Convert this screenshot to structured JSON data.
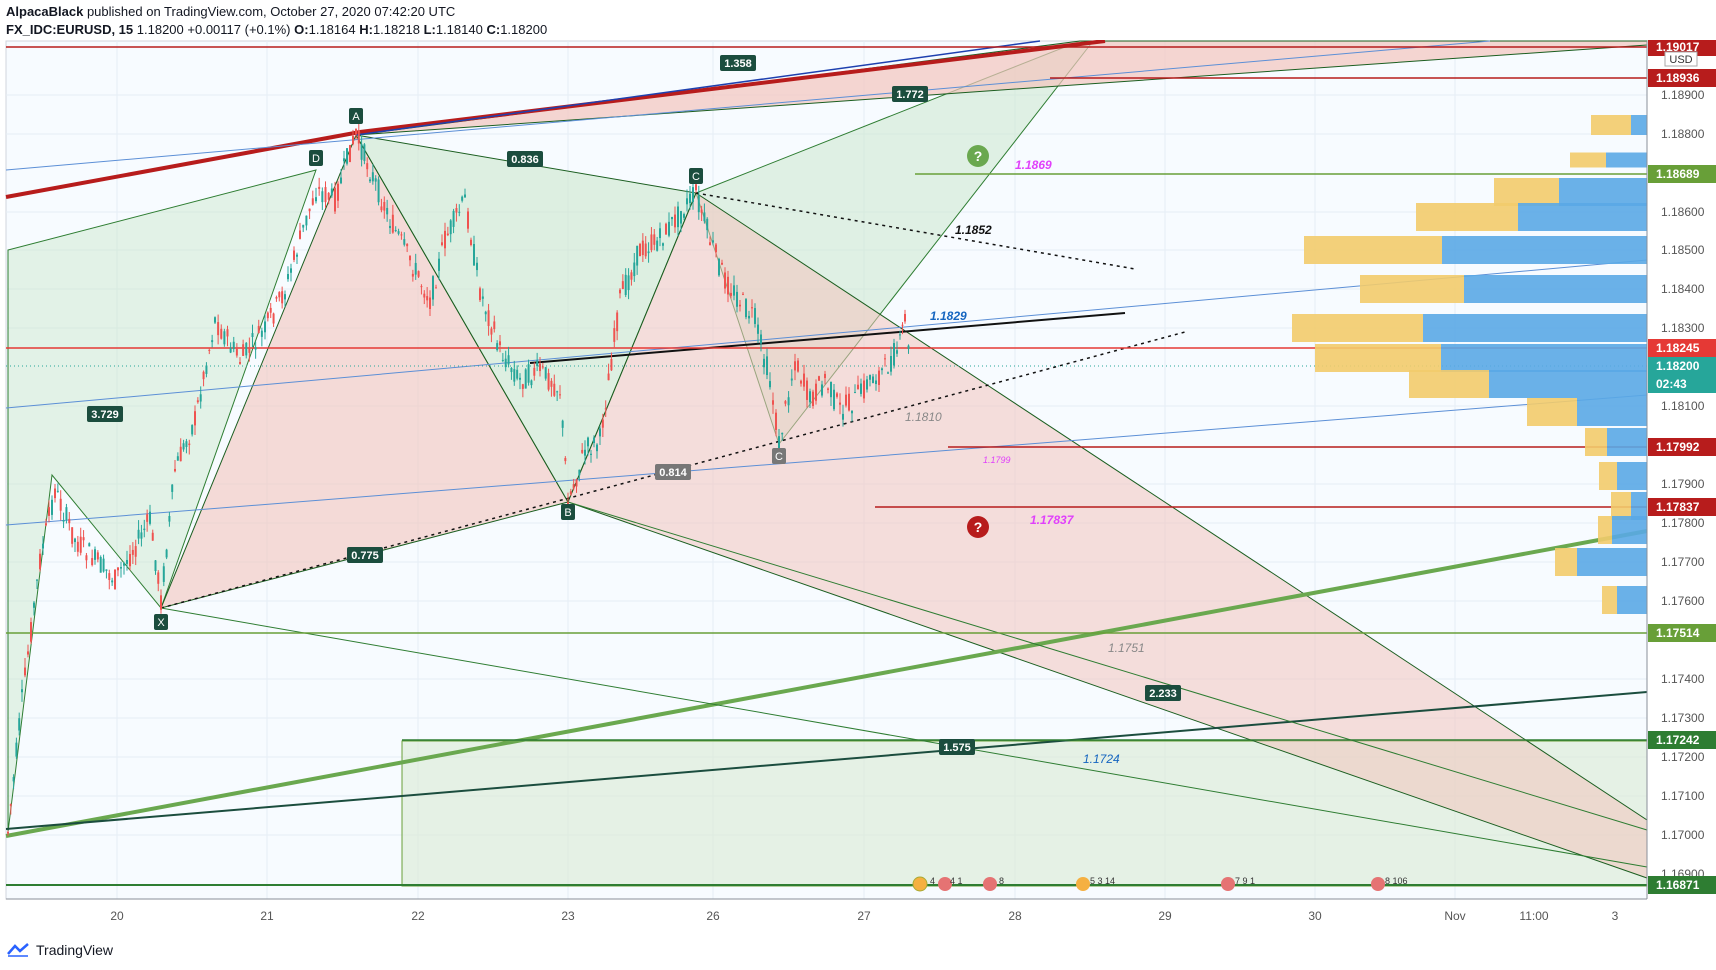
{
  "header": {
    "author": "AlpacaBlack",
    "published_text": "published on TradingView.com, October 27, 2020 07:42:20 UTC",
    "symbol": "FX_IDC:EURUSD, 15",
    "last": "1.18200",
    "change": "+0.00117 (+0.1%)",
    "o_label": "O:",
    "o_value": "1.18164",
    "h_label": "H:",
    "h_value": "1.18218",
    "l_label": "L:",
    "l_value": "1.18140",
    "c_label": "C:",
    "c_value": "1.18200"
  },
  "footer": {
    "brand": "TradingView"
  },
  "axis": {
    "currency": "USD",
    "y_ticks": [
      "1.18900",
      "1.18800",
      "1.18600",
      "1.18500",
      "1.18400",
      "1.18300",
      "1.18100",
      "1.17900",
      "1.17800",
      "1.17700",
      "1.17600",
      "1.17400",
      "1.17300",
      "1.17200",
      "1.17100",
      "1.17000",
      "1.16900"
    ],
    "x_ticks": [
      "20",
      "21",
      "22",
      "23",
      "26",
      "27",
      "28",
      "29",
      "30",
      "Nov",
      "11:00",
      "3"
    ],
    "price_tags": [
      {
        "text": "1.19017",
        "color": "#b71c1c"
      },
      {
        "text": "1.18936",
        "color": "#b71c1c"
      },
      {
        "text": "1.18689",
        "color": "#689f38"
      },
      {
        "text": "1.18245",
        "color": "#e53935"
      },
      {
        "text": "1.18200",
        "color": "#26a69a"
      },
      {
        "text": "02:43",
        "color": "#26a69a"
      },
      {
        "text": "1.17992",
        "color": "#b71c1c"
      },
      {
        "text": "1.17837",
        "color": "#b71c1c"
      },
      {
        "text": "1.17514",
        "color": "#689f38"
      },
      {
        "text": "1.17242",
        "color": "#2e7d32"
      },
      {
        "text": "1.16871",
        "color": "#2e7d32"
      }
    ]
  },
  "pattern": {
    "points": [
      "A",
      "B",
      "C",
      "C",
      "D",
      "X"
    ],
    "ratios": [
      "1.358",
      "1.772",
      "0.836",
      "3.729",
      "0.814",
      "0.775",
      "2.233",
      "1.575"
    ]
  },
  "annotations": [
    "1.1869",
    "1.1852",
    "1.1829",
    "1.1810",
    "1.1799",
    "1.17837",
    "1.1751",
    "1.1724"
  ],
  "event_badges": [
    "4",
    "4 1",
    "8",
    "5 3 14",
    "7 9 1",
    "8 106"
  ],
  "colors": {
    "accent_red": "#b71c1c",
    "accent_green": "#689f38",
    "pattern_green_fill": "#c8e6c9",
    "pattern_red_fill": "#f2c4bd",
    "volume_blue": "#5aa9e6",
    "volume_yellow": "#f2cb6b"
  }
}
